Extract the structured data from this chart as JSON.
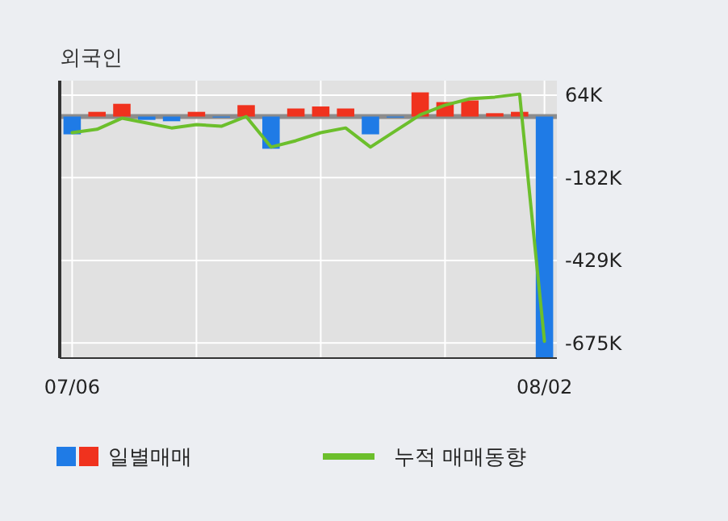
{
  "chart_data": {
    "type": "bar",
    "title": "외국인",
    "categories": [
      "07/06",
      null,
      null,
      null,
      null,
      null,
      null,
      null,
      null,
      null,
      null,
      null,
      null,
      null,
      null,
      null,
      null,
      null,
      null,
      "08/02"
    ],
    "series": [
      {
        "name": "일별매매",
        "colors": [
          "#1f7be6",
          "#f0321e",
          "#f0321e",
          "#1f7be6",
          "#1f7be6",
          "#f0321e",
          "#1f7be6",
          "#f0321e",
          "#1f7be6",
          "#f0321e",
          "#f0321e",
          "#f0321e",
          "#1f7be6",
          "#1f7be6",
          "#f0321e",
          "#f0321e",
          "#f0321e",
          "#f0321e",
          "#f0321e",
          "#1f7be6"
        ],
        "values": [
          -53,
          14,
          38,
          -10,
          -14,
          14,
          -3,
          34,
          -96,
          24,
          30,
          24,
          -53,
          -3,
          72,
          43,
          48,
          10,
          14,
          -718
        ]
      },
      {
        "name": "누적 매매동향",
        "type": "line",
        "color": "#6cbf2c",
        "values": [
          -48,
          -38,
          -5,
          -19,
          -34,
          -24,
          -29,
          0,
          -91,
          -72,
          -48,
          -34,
          -91,
          -43,
          5,
          34,
          53,
          58,
          67,
          -670
        ]
      }
    ],
    "ylim": [
      -720,
      107
    ],
    "yticks": [
      {
        "value": 64,
        "label": "64K"
      },
      {
        "value": -182,
        "label": "-182K"
      },
      {
        "value": -429,
        "label": "-429K"
      },
      {
        "value": -675,
        "label": "-675K"
      }
    ],
    "grid": true,
    "legend": "bottom"
  }
}
